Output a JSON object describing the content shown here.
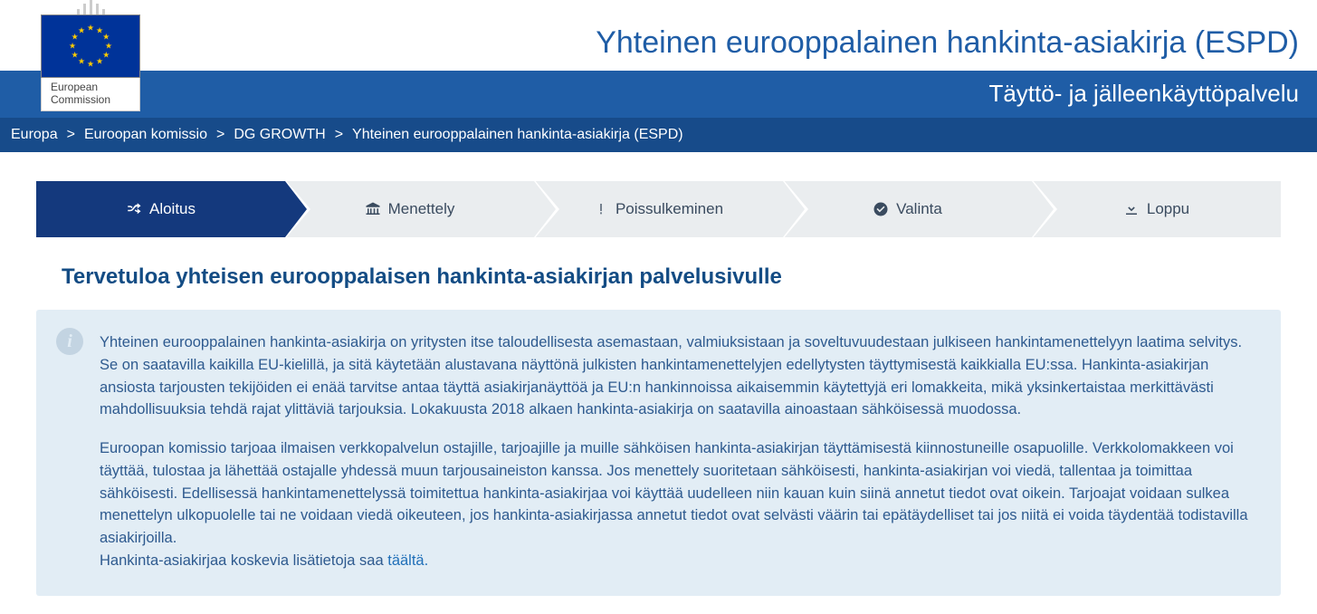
{
  "header": {
    "logo_label_line1": "European",
    "logo_label_line2": "Commission",
    "site_title": "Yhteinen eurooppalainen hankinta-asiakirja (ESPD)",
    "subtitle": "Täyttö- ja jälleenkäyttöpalvelu"
  },
  "colors": {
    "brand_blue": "#1f5da6",
    "dark_blue": "#174b8a",
    "step_active": "#14397d",
    "step_inactive": "#eaedef",
    "step_text": "#3a4b5f",
    "info_bg": "#e2edf5",
    "info_text": "#2e5a8f",
    "link": "#1f6fb8"
  },
  "breadcrumb": {
    "items": [
      {
        "label": "Europa"
      },
      {
        "label": "Euroopan komissio"
      },
      {
        "label": "DG GROWTH"
      },
      {
        "label": "Yhteinen eurooppalainen hankinta-asiakirja (ESPD)"
      }
    ],
    "separator": ">"
  },
  "steps": [
    {
      "label": "Aloitus",
      "icon": "shuffle",
      "active": true
    },
    {
      "label": "Menettely",
      "icon": "institution",
      "active": false
    },
    {
      "label": "Poissulkeminen",
      "icon": "exclaim",
      "active": false
    },
    {
      "label": "Valinta",
      "icon": "check-circle",
      "active": false
    },
    {
      "label": "Loppu",
      "icon": "download",
      "active": false
    }
  ],
  "page": {
    "heading": "Tervetuloa yhteisen eurooppalaisen hankinta-asiakirjan palvelusivulle",
    "paragraphs": [
      "Yhteinen eurooppalainen hankinta-asiakirja on yritysten itse taloudellisesta asemastaan, valmiuksistaan ja soveltuvuudestaan julkiseen hankintamenettelyyn laatima selvitys. Se on saatavilla kaikilla EU-kielillä, ja sitä käytetään alustavana näyttönä julkisten hankintamenettelyjen edellytysten täyttymisestä kaikkialla EU:ssa. Hankinta-asiakirjan ansiosta tarjousten tekijöiden ei enää tarvitse antaa täyttä asiakirjanäyttöä ja EU:n hankinnoissa aikaisemmin käytettyjä eri lomakkeita, mikä yksinkertaistaa merkittävästi mahdollisuuksia tehdä rajat ylittäviä tarjouksia. Lokakuusta 2018 alkaen hankinta-asiakirja on saatavilla ainoastaan sähköisessä muodossa.",
      "Euroopan komissio tarjoaa ilmaisen verkkopalvelun ostajille, tarjoajille ja muille sähköisen hankinta-asiakirjan täyttämisestä kiinnostuneille osapuolille. Verkkolomakkeen voi täyttää, tulostaa ja lähettää ostajalle yhdessä muun tarjousaineiston kanssa. Jos menettely suoritetaan sähköisesti, hankinta-asiakirjan voi viedä, tallentaa ja toimittaa sähköisesti. Edellisessä hankintamenettelyssä toimitettua hankinta-asiakirjaa voi käyttää uudelleen niin kauan kuin siinä annetut tiedot ovat oikein. Tarjoajat voidaan sulkea menettelyn ulkopuolelle tai ne voidaan viedä oikeuteen, jos hankinta-asiakirjassa annetut tiedot ovat selvästi väärin tai epätäydelliset tai jos niitä ei voida täydentää todistavilla asiakirjoilla."
    ],
    "more_info_prefix": "Hankinta-asiakirjaa koskevia lisätietoja saa ",
    "more_info_link": "täältä.",
    "info_icon_glyph": "i"
  }
}
